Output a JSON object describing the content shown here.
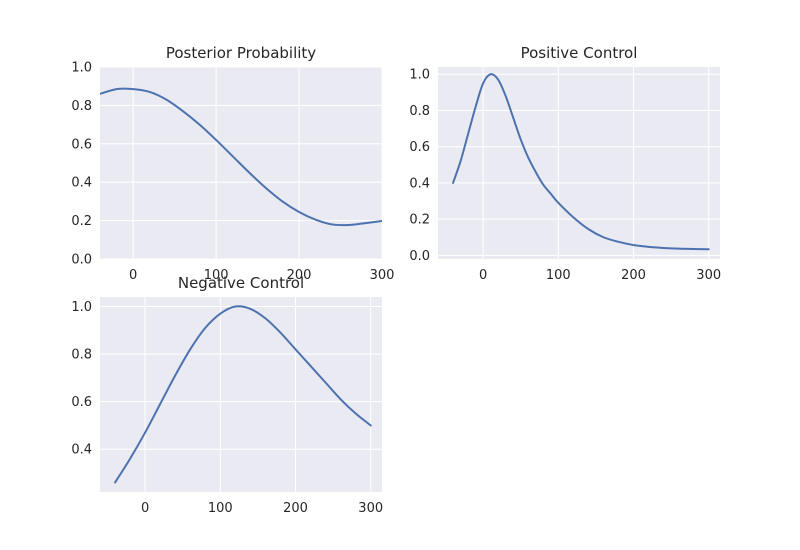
{
  "colors": {
    "background": "#eaeaf2",
    "grid": "#ffffff",
    "line": "#4c72b0",
    "text": "#262626"
  },
  "chart_data": [
    {
      "type": "line",
      "title": "Posterior Probability",
      "xlabel": "",
      "ylabel": "",
      "xlim": [
        -40,
        300
      ],
      "ylim": [
        0,
        1.0
      ],
      "xticks": [
        0,
        100,
        200,
        300
      ],
      "yticks": [
        0.0,
        0.2,
        0.4,
        0.6,
        0.8,
        1.0
      ],
      "xtick_labels": [
        "0",
        "100",
        "200",
        "300"
      ],
      "ytick_labels": [
        "0.0",
        "0.2",
        "0.4",
        "0.6",
        "0.8",
        "1.0"
      ],
      "grid": true,
      "series": [
        {
          "x": [
            -40,
            -20,
            0,
            20,
            40,
            60,
            80,
            100,
            120,
            140,
            160,
            180,
            200,
            220,
            240,
            260,
            280,
            300
          ],
          "y": [
            0.86,
            0.885,
            0.885,
            0.87,
            0.83,
            0.77,
            0.7,
            0.62,
            0.535,
            0.45,
            0.37,
            0.3,
            0.245,
            0.205,
            0.18,
            0.177,
            0.187,
            0.198
          ]
        }
      ]
    },
    {
      "type": "line",
      "title": "Positive Control",
      "xlabel": "",
      "ylabel": "",
      "xlim": [
        -60,
        315
      ],
      "ylim": [
        -0.02,
        1.04
      ],
      "xticks": [
        0,
        100,
        200,
        300
      ],
      "yticks": [
        0.0,
        0.2,
        0.4,
        0.6,
        0.8,
        1.0
      ],
      "xtick_labels": [
        "0",
        "100",
        "200",
        "300"
      ],
      "ytick_labels": [
        "0.0",
        "0.2",
        "0.4",
        "0.6",
        "0.8",
        "1.0"
      ],
      "grid": true,
      "series": [
        {
          "x": [
            -40,
            -30,
            -20,
            -10,
            0,
            10,
            20,
            30,
            40,
            50,
            60,
            70,
            80,
            90,
            100,
            120,
            140,
            160,
            180,
            200,
            220,
            240,
            260,
            280,
            300
          ],
          "y": [
            0.4,
            0.52,
            0.67,
            0.82,
            0.95,
            1.0,
            0.97,
            0.88,
            0.76,
            0.64,
            0.54,
            0.46,
            0.39,
            0.34,
            0.29,
            0.21,
            0.145,
            0.1,
            0.075,
            0.057,
            0.047,
            0.041,
            0.037,
            0.035,
            0.034
          ]
        }
      ]
    },
    {
      "type": "line",
      "title": "Negative Control",
      "xlabel": "",
      "ylabel": "",
      "xlim": [
        -60,
        315
      ],
      "ylim": [
        0.22,
        1.04
      ],
      "xticks": [
        0,
        100,
        200,
        300
      ],
      "yticks": [
        0.4,
        0.6,
        0.8,
        1.0
      ],
      "xtick_labels": [
        "0",
        "100",
        "200",
        "300"
      ],
      "ytick_labels": [
        "0.4",
        "0.6",
        "0.8",
        "1.0"
      ],
      "grid": true,
      "series": [
        {
          "x": [
            -40,
            -20,
            0,
            20,
            40,
            60,
            80,
            100,
            120,
            140,
            160,
            180,
            200,
            220,
            240,
            260,
            280,
            300
          ],
          "y": [
            0.26,
            0.36,
            0.47,
            0.59,
            0.71,
            0.82,
            0.91,
            0.97,
            1.0,
            0.99,
            0.95,
            0.89,
            0.82,
            0.75,
            0.68,
            0.61,
            0.55,
            0.5
          ]
        }
      ]
    }
  ]
}
